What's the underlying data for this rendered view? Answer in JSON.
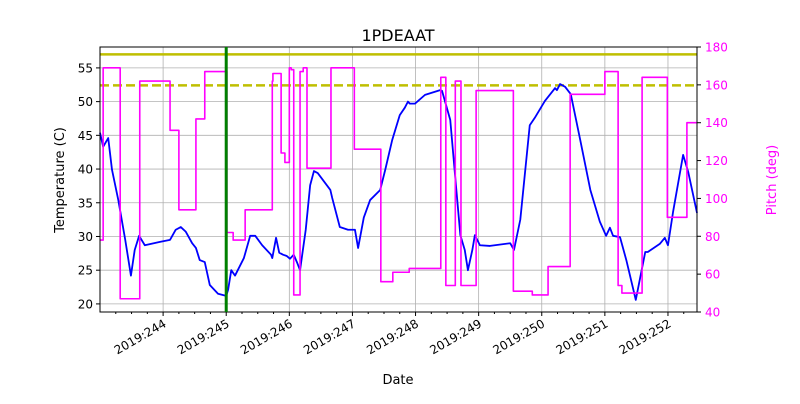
{
  "chart_data": {
    "type": "line",
    "title": "1PDEAAT",
    "xlabel": "Date",
    "ylabel": "Temperature (C)",
    "ylabel_right": "Pitch (deg)",
    "xlim": [
      243.0,
      252.46
    ],
    "ylim": [
      18.8,
      58.1
    ],
    "ylim_right": [
      40,
      180
    ],
    "x_ticks": [
      244,
      245,
      246,
      247,
      248,
      249,
      250,
      251,
      252
    ],
    "x_tick_labels": [
      "2019:244",
      "2019:245",
      "2019:246",
      "2019:247",
      "2019:248",
      "2019:249",
      "2019:250",
      "2019:251",
      "2019:252"
    ],
    "y_ticks": [
      20,
      25,
      30,
      35,
      40,
      45,
      50,
      55
    ],
    "y_tick_labels": [
      "20",
      "25",
      "30",
      "35",
      "40",
      "45",
      "50",
      "55"
    ],
    "y_right_ticks": [
      40,
      60,
      80,
      100,
      120,
      140,
      160,
      180
    ],
    "y_right_tick_labels": [
      "40",
      "60",
      "80",
      "100",
      "120",
      "140",
      "160",
      "180"
    ],
    "grid": true,
    "colors": {
      "temperature": "#0000ff",
      "pitch": "#ff00ff",
      "limit": "#bfbf00",
      "marker": "#008000",
      "right_axis": "#ff00ff"
    },
    "hlines": [
      {
        "y": 57.0,
        "style": "solid",
        "axis": "left"
      },
      {
        "y": 52.4,
        "style": "dashed",
        "axis": "left"
      }
    ],
    "vline": {
      "x": 245.0
    },
    "series": [
      {
        "axis": "left",
        "kind": "line",
        "points": [
          [
            243.0,
            45.4
          ],
          [
            243.05,
            43.3
          ],
          [
            243.13,
            44.6
          ],
          [
            243.19,
            39.9
          ],
          [
            243.29,
            35.4
          ],
          [
            243.4,
            29.5
          ],
          [
            243.49,
            24.2
          ],
          [
            243.55,
            28.0
          ],
          [
            243.62,
            30.1
          ],
          [
            243.71,
            28.7
          ],
          [
            243.95,
            29.2
          ],
          [
            244.11,
            29.5
          ],
          [
            244.2,
            31.0
          ],
          [
            244.28,
            31.4
          ],
          [
            244.36,
            30.7
          ],
          [
            244.46,
            29.0
          ],
          [
            244.52,
            28.3
          ],
          [
            244.58,
            26.5
          ],
          [
            244.66,
            26.2
          ],
          [
            244.74,
            22.8
          ],
          [
            244.87,
            21.5
          ],
          [
            245.0,
            21.2
          ],
          [
            245.03,
            22.1
          ],
          [
            245.08,
            25.0
          ],
          [
            245.14,
            24.2
          ],
          [
            245.28,
            26.8
          ],
          [
            245.38,
            30.1
          ],
          [
            245.46,
            30.1
          ],
          [
            245.57,
            28.7
          ],
          [
            245.71,
            27.3
          ],
          [
            245.73,
            26.8
          ],
          [
            245.79,
            29.8
          ],
          [
            245.84,
            27.6
          ],
          [
            245.9,
            27.3
          ],
          [
            245.96,
            27.1
          ],
          [
            246.01,
            26.7
          ],
          [
            246.07,
            27.3
          ],
          [
            246.12,
            26.2
          ],
          [
            246.17,
            25.0
          ],
          [
            246.26,
            31.0
          ],
          [
            246.33,
            37.6
          ],
          [
            246.39,
            39.7
          ],
          [
            246.45,
            39.4
          ],
          [
            246.65,
            36.9
          ],
          [
            246.68,
            35.7
          ],
          [
            246.8,
            31.4
          ],
          [
            246.93,
            31.0
          ],
          [
            247.04,
            31.0
          ],
          [
            247.09,
            28.3
          ],
          [
            247.18,
            32.8
          ],
          [
            247.28,
            35.4
          ],
          [
            247.44,
            36.9
          ],
          [
            247.52,
            39.9
          ],
          [
            247.63,
            44.3
          ],
          [
            247.75,
            48.0
          ],
          [
            247.83,
            49.1
          ],
          [
            247.88,
            50.0
          ],
          [
            247.91,
            49.7
          ],
          [
            247.99,
            49.7
          ],
          [
            248.15,
            51.0
          ],
          [
            248.39,
            51.7
          ],
          [
            248.42,
            51.6
          ],
          [
            248.55,
            47.3
          ],
          [
            248.64,
            37.6
          ],
          [
            248.71,
            30.2
          ],
          [
            248.78,
            28.0
          ],
          [
            248.83,
            25.0
          ],
          [
            248.9,
            28.0
          ],
          [
            248.94,
            30.2
          ],
          [
            249.02,
            28.7
          ],
          [
            249.18,
            28.6
          ],
          [
            249.5,
            29.0
          ],
          [
            249.56,
            28.0
          ],
          [
            249.66,
            32.5
          ],
          [
            249.81,
            46.5
          ],
          [
            249.89,
            47.6
          ],
          [
            250.05,
            50.1
          ],
          [
            250.21,
            52.0
          ],
          [
            250.24,
            51.7
          ],
          [
            250.29,
            52.6
          ],
          [
            250.37,
            52.2
          ],
          [
            250.46,
            51.1
          ],
          [
            250.61,
            44.3
          ],
          [
            250.77,
            36.9
          ],
          [
            250.92,
            32.2
          ],
          [
            251.02,
            30.1
          ],
          [
            251.08,
            31.3
          ],
          [
            251.13,
            30.1
          ],
          [
            251.24,
            29.9
          ],
          [
            251.34,
            26.5
          ],
          [
            251.49,
            20.6
          ],
          [
            251.56,
            23.9
          ],
          [
            251.64,
            27.7
          ],
          [
            251.68,
            27.7
          ],
          [
            251.87,
            28.9
          ],
          [
            251.95,
            29.8
          ],
          [
            252.0,
            28.7
          ],
          [
            252.08,
            33.6
          ],
          [
            252.24,
            42.1
          ],
          [
            252.32,
            39.6
          ],
          [
            252.46,
            33.5
          ]
        ]
      },
      {
        "axis": "right",
        "kind": "step",
        "points": [
          [
            243.0,
            78
          ],
          [
            243.05,
            169
          ],
          [
            243.32,
            47
          ],
          [
            243.63,
            162
          ],
          [
            244.11,
            136
          ],
          [
            244.25,
            94
          ],
          [
            244.52,
            142
          ],
          [
            244.66,
            167
          ],
          [
            245.01,
            82
          ],
          [
            245.11,
            78
          ],
          [
            245.3,
            94
          ],
          [
            245.73,
            162
          ],
          [
            245.74,
            166
          ],
          [
            245.87,
            124
          ],
          [
            245.93,
            119
          ],
          [
            246.0,
            169
          ],
          [
            246.03,
            168
          ],
          [
            246.07,
            49
          ],
          [
            246.17,
            167
          ],
          [
            246.22,
            169
          ],
          [
            246.28,
            116
          ],
          [
            246.66,
            169
          ],
          [
            247.03,
            126
          ],
          [
            247.45,
            56
          ],
          [
            247.64,
            61
          ],
          [
            247.9,
            63
          ],
          [
            248.4,
            164
          ],
          [
            248.48,
            54
          ],
          [
            248.63,
            162
          ],
          [
            248.72,
            54
          ],
          [
            248.96,
            157
          ],
          [
            249.55,
            51
          ],
          [
            249.85,
            49
          ],
          [
            250.1,
            64
          ],
          [
            250.45,
            155
          ],
          [
            251.0,
            167
          ],
          [
            251.21,
            54
          ],
          [
            251.27,
            50
          ],
          [
            251.59,
            164
          ],
          [
            251.99,
            90
          ],
          [
            252.3,
            140
          ],
          [
            252.46,
            140
          ]
        ]
      }
    ]
  }
}
